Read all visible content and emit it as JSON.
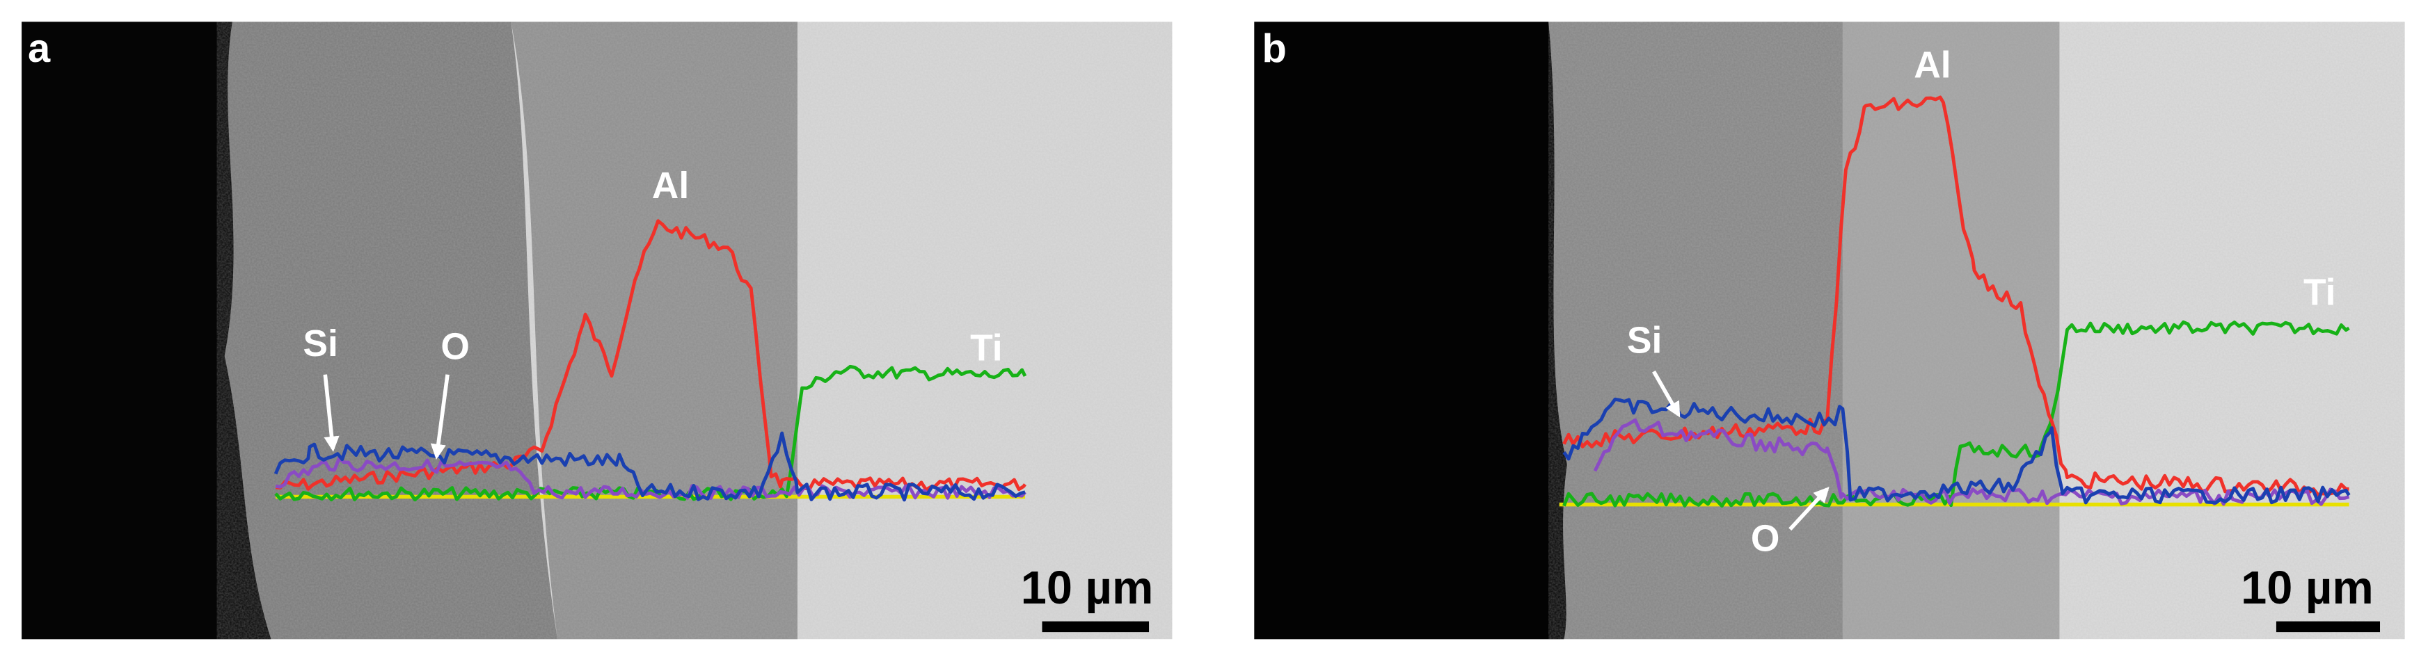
{
  "panels": [
    {
      "label": "a",
      "annotations": {
        "al": "Al",
        "si": "Si",
        "o": "O",
        "ti": "Ti"
      },
      "scale_bar": "10 µm"
    },
    {
      "label": "b",
      "annotations": {
        "al": "Al",
        "si": "Si",
        "o": "O",
        "ti": "Ti"
      },
      "scale_bar": "10 µm"
    }
  ]
}
